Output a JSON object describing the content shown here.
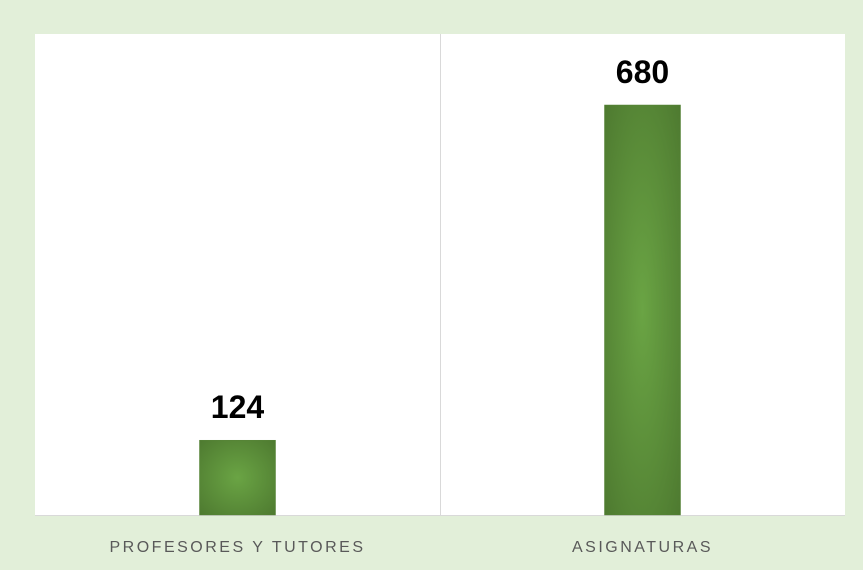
{
  "chart_data": {
    "type": "bar",
    "categories": [
      "PROFESORES Y TUTORES",
      "ASIGNATURAS"
    ],
    "values": [
      124,
      680
    ],
    "color": "#548235"
  }
}
